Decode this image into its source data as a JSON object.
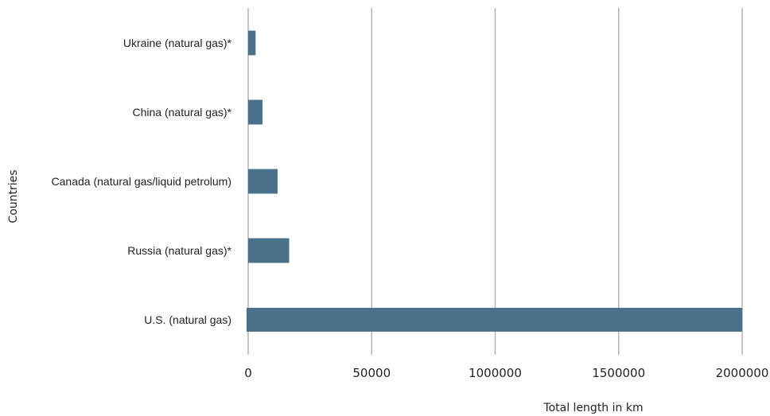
{
  "chart_data": {
    "type": "bar",
    "orientation": "horizontal",
    "categories": [
      "Ukraine (natural gas)*",
      "China (natural gas)*",
      "Canada (natural gas/liquid petrolum)",
      "Russia (natural gas)*",
      "U.S. (natural gas)"
    ],
    "values": [
      30000,
      58000,
      119000,
      166000,
      2000000
    ],
    "xticks": [
      "0",
      "50000",
      "1000000",
      "1500000",
      "2000000"
    ],
    "xlim": [
      0,
      2000000
    ],
    "xlabel": "Total length in km",
    "ylabel": "Countries",
    "grid": "vertical",
    "colors": {
      "bar": "#4a7189",
      "grid": "#b4b4b4"
    }
  }
}
